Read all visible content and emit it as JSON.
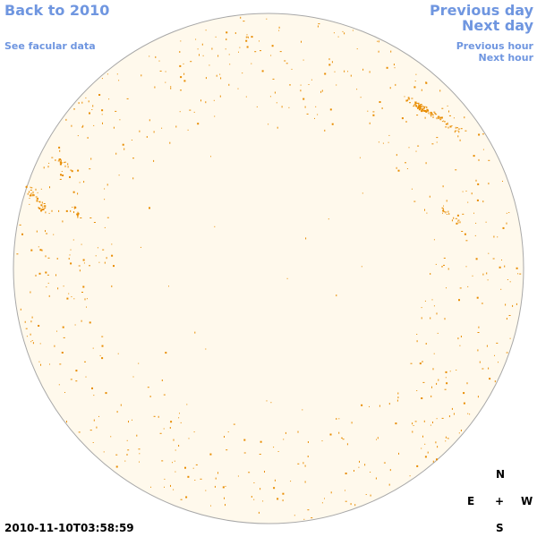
{
  "nav": {
    "back_label": "Back to 2010",
    "facular_label": "See facular data",
    "prev_day_label": "Previous day",
    "next_day_label": "Next day",
    "prev_hour_label": "Previous hour",
    "next_hour_label": "Next hour"
  },
  "compass": {
    "north": "N",
    "east": "E",
    "center": "+",
    "west": "W",
    "south": "S"
  },
  "timestamp": "2010-11-10T03:58:59",
  "colors": {
    "disk_fill": "#fff9ec",
    "disk_stroke": "#a8a8a8",
    "feature": "#e88c00",
    "link": "#6f96e0"
  }
}
